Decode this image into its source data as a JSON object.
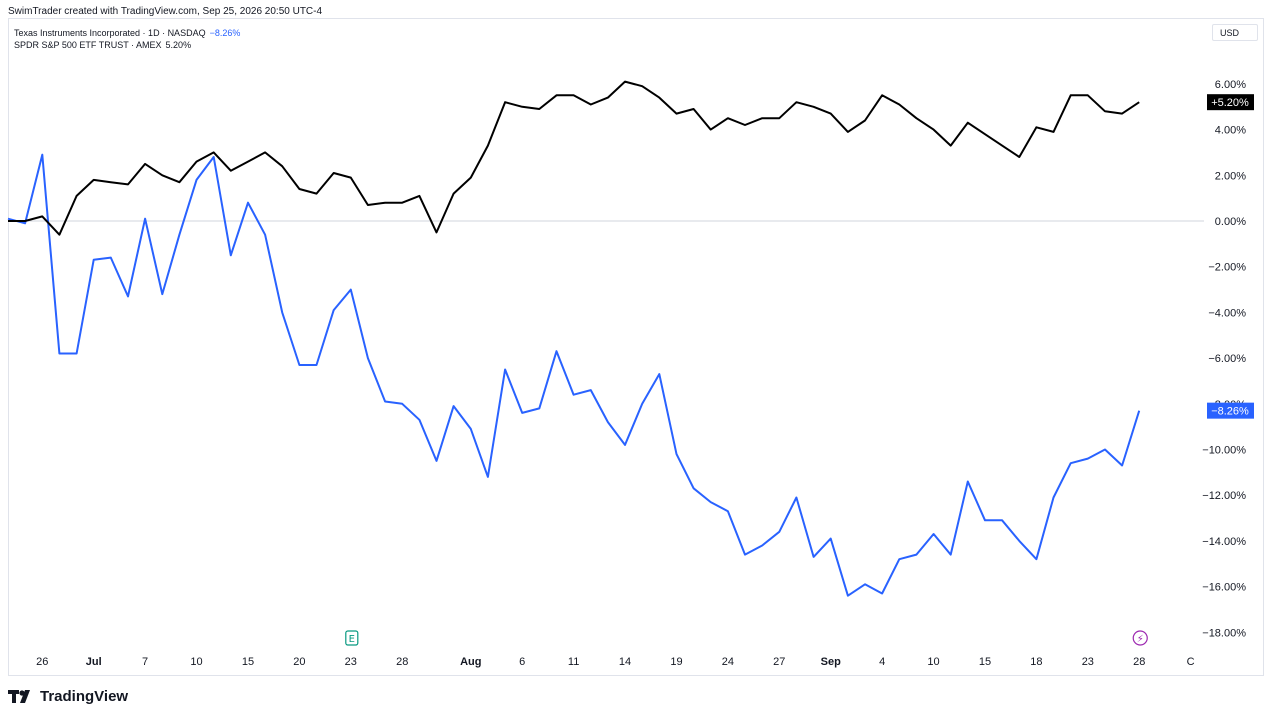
{
  "header": {
    "text": "SwimTrader created with TradingView.com, Sep 25, 2026 20:50 UTC-4"
  },
  "legend": [
    {
      "label": "Texas Instruments Incorporated · 1D · NASDAQ",
      "change": "−8.26%",
      "change_color": "#2962ff"
    },
    {
      "label": "SPDR S&P 500 ETF TRUST · AMEX",
      "change": "5.20%",
      "change_color": "#131722"
    }
  ],
  "currency_button": "USD",
  "footer": {
    "brand": "TradingView"
  },
  "colors": {
    "ti_line": "#2962ff",
    "spy_line": "#000000",
    "zero_line": "#d1d4dc",
    "ti_badge": "#2962ff",
    "spy_badge": "#000000"
  },
  "chart_data": {
    "type": "line",
    "x": [
      0,
      1,
      2,
      3,
      4,
      5,
      6,
      7,
      8,
      9,
      10,
      11,
      12,
      13,
      14,
      15,
      16,
      17,
      18,
      19,
      20,
      21,
      22,
      23,
      24,
      25,
      26,
      27,
      28,
      29,
      30,
      31,
      32,
      33,
      34,
      35,
      36,
      37,
      38,
      39,
      40,
      41,
      42,
      43,
      44,
      45,
      46,
      47,
      48,
      49,
      50,
      51,
      52,
      53,
      54,
      55,
      56,
      57,
      58,
      59,
      60,
      61,
      62,
      63,
      64,
      65,
      66
    ],
    "x_tick_labels": [
      {
        "x": 2,
        "label": "26",
        "bold": false
      },
      {
        "x": 5,
        "label": "Jul",
        "bold": true
      },
      {
        "x": 8,
        "label": "7",
        "bold": false
      },
      {
        "x": 11,
        "label": "10",
        "bold": false
      },
      {
        "x": 14,
        "label": "15",
        "bold": false
      },
      {
        "x": 17,
        "label": "20",
        "bold": false
      },
      {
        "x": 20,
        "label": "23",
        "bold": false
      },
      {
        "x": 23,
        "label": "28",
        "bold": false
      },
      {
        "x": 27,
        "label": "Aug",
        "bold": true
      },
      {
        "x": 30,
        "label": "6",
        "bold": false
      },
      {
        "x": 33,
        "label": "11",
        "bold": false
      },
      {
        "x": 36,
        "label": "14",
        "bold": false
      },
      {
        "x": 39,
        "label": "19",
        "bold": false
      },
      {
        "x": 42,
        "label": "24",
        "bold": false
      },
      {
        "x": 45,
        "label": "27",
        "bold": false
      },
      {
        "x": 48,
        "label": "Sep",
        "bold": true
      },
      {
        "x": 51,
        "label": "4",
        "bold": false
      },
      {
        "x": 54,
        "label": "10",
        "bold": false
      },
      {
        "x": 57,
        "label": "15",
        "bold": false
      },
      {
        "x": 60,
        "label": "18",
        "bold": false
      },
      {
        "x": 63,
        "label": "23",
        "bold": false
      },
      {
        "x": 66,
        "label": "28",
        "bold": false
      },
      {
        "x": 69,
        "label": "C",
        "bold": false
      }
    ],
    "y_ticks": [
      {
        "value": 6,
        "label": "6.00%"
      },
      {
        "value": 4,
        "label": "4.00%"
      },
      {
        "value": 2,
        "label": "2.00%"
      },
      {
        "value": 0,
        "label": "0.00%"
      },
      {
        "value": -2,
        "label": "−2.00%"
      },
      {
        "value": -4,
        "label": "−4.00%"
      },
      {
        "value": -6,
        "label": "−6.00%"
      },
      {
        "value": -8,
        "label": "−8.00%"
      },
      {
        "value": -10,
        "label": "−10.00%"
      },
      {
        "value": -12,
        "label": "−12.00%"
      },
      {
        "value": -14,
        "label": "−14.00%"
      },
      {
        "value": -16,
        "label": "−16.00%"
      },
      {
        "value": -18,
        "label": "−18.00%"
      }
    ],
    "ylim": [
      -18.5,
      7.5
    ],
    "xlim": [
      -0.3,
      70
    ],
    "series": [
      {
        "name": "Texas Instruments Incorporated",
        "color": "#2962ff",
        "last_label": "−8.26%",
        "values": [
          0.1,
          -0.1,
          2.9,
          -5.8,
          -5.8,
          -1.7,
          -1.6,
          -3.3,
          0.1,
          -3.2,
          -0.6,
          1.8,
          2.8,
          -1.5,
          0.8,
          -0.6,
          -4.0,
          -6.3,
          -6.3,
          -3.9,
          -3.0,
          -6.0,
          -7.9,
          -8.0,
          -8.7,
          -10.5,
          -8.1,
          -9.1,
          -11.2,
          -6.5,
          -8.4,
          -8.2,
          -5.7,
          -7.6,
          -7.4,
          -8.8,
          -9.8,
          -8.0,
          -6.7,
          -10.2,
          -11.7,
          -12.3,
          -12.7,
          -14.6,
          -14.2,
          -13.6,
          -12.1,
          -14.7,
          -13.9,
          -16.4,
          -15.9,
          -16.3,
          -14.8,
          -14.6,
          -13.7,
          -14.6,
          -11.4,
          -13.1,
          -13.1,
          -14.0,
          -14.8,
          -12.1,
          -10.6,
          -10.4,
          -10.0,
          -10.7,
          -8.3
        ]
      },
      {
        "name": "SPDR S&P 500 ETF TRUST",
        "color": "#000000",
        "last_label": "+5.20%",
        "values": [
          0.0,
          0.0,
          0.2,
          -0.6,
          1.1,
          1.8,
          1.7,
          1.6,
          2.5,
          2.0,
          1.7,
          2.6,
          3.0,
          2.2,
          2.6,
          3.0,
          2.4,
          1.4,
          1.2,
          2.1,
          1.9,
          0.7,
          0.8,
          0.8,
          1.1,
          -0.5,
          1.2,
          1.9,
          3.3,
          5.2,
          5.0,
          4.9,
          5.5,
          5.5,
          5.1,
          5.4,
          6.1,
          5.9,
          5.4,
          4.7,
          4.9,
          4.0,
          4.5,
          4.2,
          4.5,
          4.5,
          5.2,
          5.0,
          4.7,
          3.9,
          4.4,
          5.5,
          5.1,
          4.5,
          4.0,
          3.3,
          4.3,
          3.8,
          3.3,
          2.8,
          4.1,
          3.9,
          5.5,
          5.5,
          4.8,
          4.7,
          5.2
        ]
      }
    ],
    "annotations": [
      {
        "x": 20,
        "type": "earnings-marker",
        "label": "E",
        "color": "#089981"
      },
      {
        "x": 66,
        "type": "dividend-marker",
        "label": "⚡",
        "color": "#9c27b0"
      }
    ]
  }
}
